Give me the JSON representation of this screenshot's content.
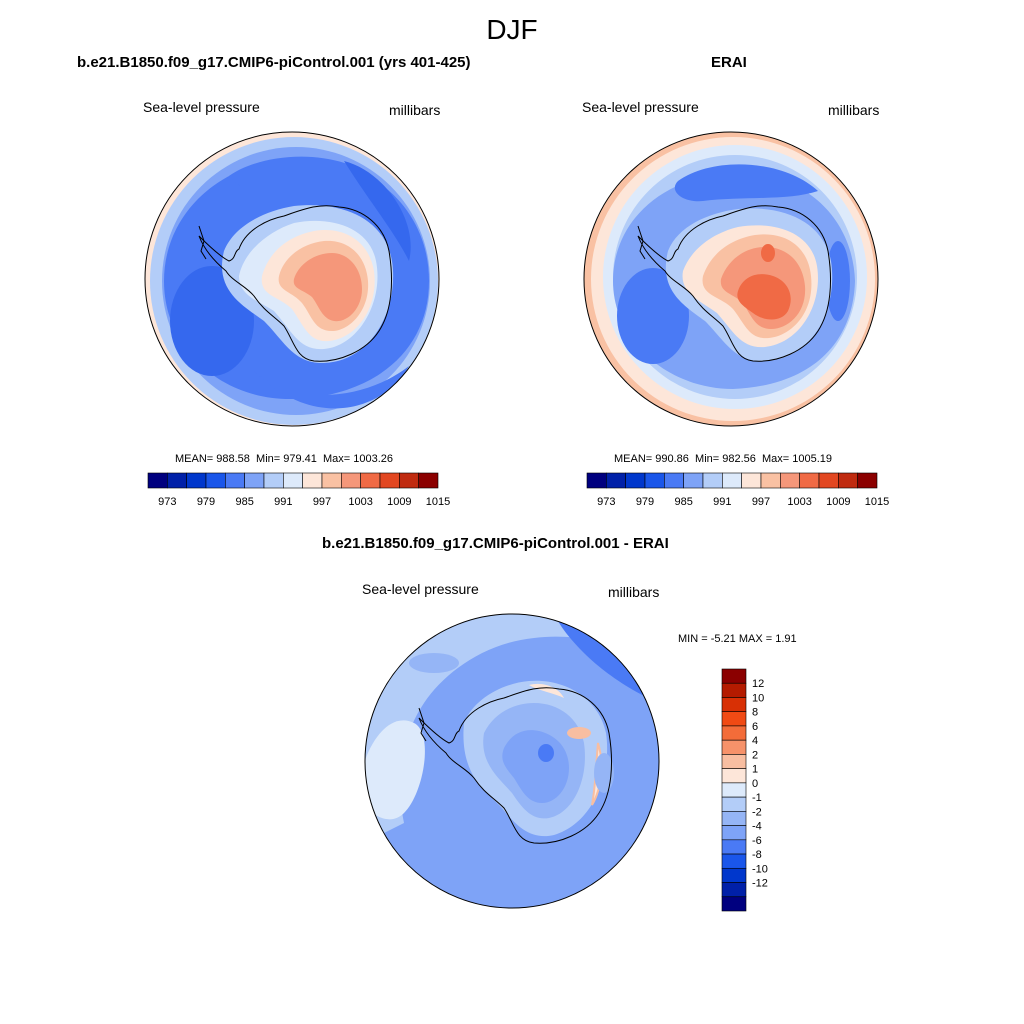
{
  "page": {
    "title": "DJF"
  },
  "panels": [
    {
      "title": "b.e21.B1850.f09_g17.CMIP6-piControl.001 (yrs 401-425)",
      "variable": "Sea-level pressure",
      "units": "millibars",
      "stats": {
        "mean": "MEAN= 988.58",
        "min": "Min= 979.41",
        "max": "Max= 1003.26"
      }
    },
    {
      "title": "ERAI",
      "variable": "Sea-level pressure",
      "units": "millibars",
      "stats": {
        "mean": "MEAN= 990.86",
        "min": "Min= 982.56",
        "max": "Max= 1005.19"
      }
    },
    {
      "title": "b.e21.B1850.f09_g17.CMIP6-piControl.001 - ERAI",
      "variable": "Sea-level pressure",
      "units": "millibars",
      "stats": {
        "min": "MIN =  -5.21",
        "max": "MAX =   1.91"
      }
    }
  ],
  "colorbar_abs": {
    "colors": [
      "#00007f",
      "#0020a8",
      "#0037cc",
      "#1a56ea",
      "#4a7af5",
      "#7ea3f7",
      "#b3cdf8",
      "#ddeafb",
      "#fde6d9",
      "#f9c1a3",
      "#f5977a",
      "#f06a45",
      "#e24721",
      "#c02b10",
      "#8b0000"
    ],
    "tick_labels": [
      "973",
      "979",
      "985",
      "991",
      "997",
      "1003",
      "1009",
      "1015"
    ]
  },
  "colorbar_diff": {
    "colors_top_to_bottom": [
      "#8b0000",
      "#b41b00",
      "#d83005",
      "#f04a14",
      "#f36c39",
      "#f6926a",
      "#f8bea1",
      "#fde6d9",
      "#ddeafb",
      "#b3cdf8",
      "#95b5f6",
      "#7ea3f7",
      "#4a7af5",
      "#1a56ea",
      "#0037cc",
      "#0020a8",
      "#00007f"
    ],
    "tick_labels": [
      "12",
      "10",
      "8",
      "6",
      "4",
      "2",
      "1",
      "0",
      "-1",
      "-2",
      "-4",
      "-6",
      "-8",
      "-10",
      "-12"
    ]
  },
  "map_colors": {
    "deep_low": "#4a7af5",
    "low": "#7ea3f7",
    "light_low": "#b3cdf8",
    "near_zero": "#ddeafb",
    "high1": "#fde6d9",
    "high2": "#f9c1a3",
    "high3": "#f5977a",
    "high4": "#f06a45",
    "diff_bg": "#7ea3f7"
  }
}
